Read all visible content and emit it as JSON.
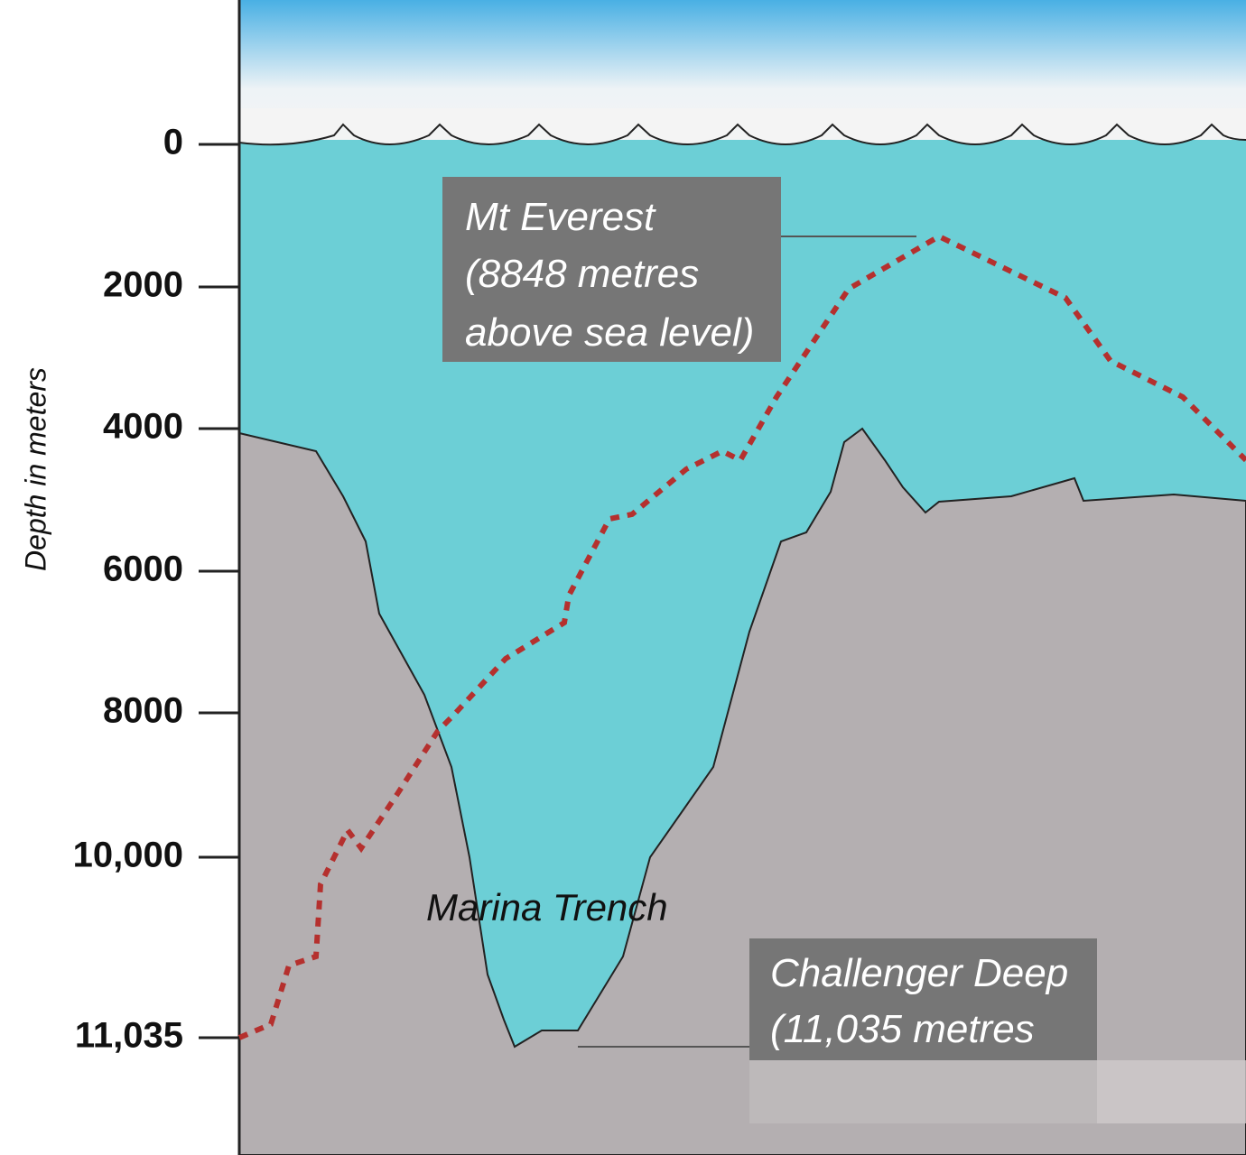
{
  "axis": {
    "label": "Depth in meters",
    "ticks": [
      "0",
      "2000",
      "4000",
      "6000",
      "8000",
      "10,000",
      "11,035"
    ]
  },
  "everest": {
    "lines": [
      "Mt Everest",
      "(8848 metres",
      "above sea level)"
    ]
  },
  "trench": {
    "label": "Marina Trench"
  },
  "challenger": {
    "lines": [
      "Challenger Deep",
      "(11,035  metres"
    ]
  }
}
